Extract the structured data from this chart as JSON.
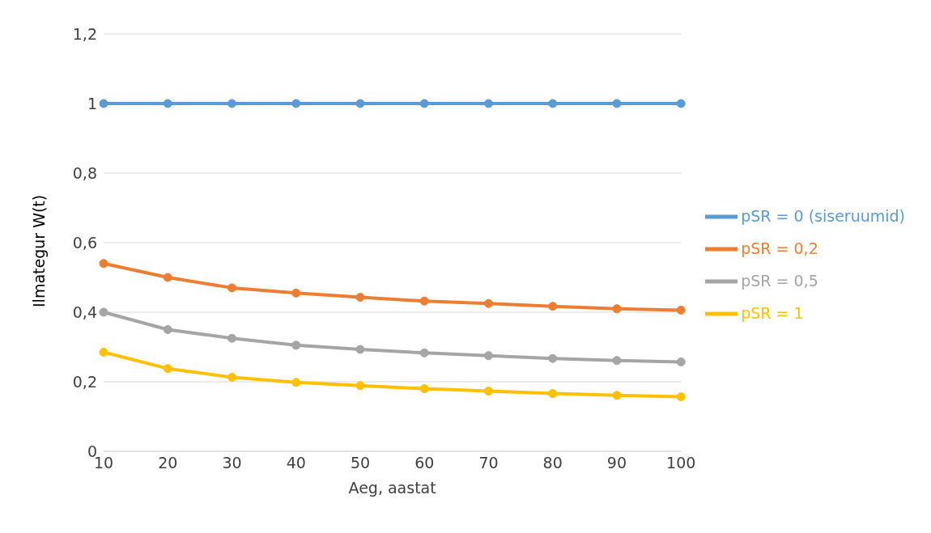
{
  "chart_data": {
    "type": "line",
    "xlabel": "Aeg, aastat",
    "ylabel": "Ilmategur W(t)",
    "categories": [
      "10",
      "20",
      "30",
      "40",
      "50",
      "60",
      "70",
      "80",
      "90",
      "100"
    ],
    "series": [
      {
        "name": "pSR = 0 (siseruumid)",
        "color": "#5b9bd5",
        "values": [
          1,
          1,
          1,
          1,
          1,
          1,
          1,
          1,
          1,
          1
        ]
      },
      {
        "name": "pSR = 0,2",
        "color": "#ed7d31",
        "values": [
          0.54,
          0.5,
          0.47,
          0.455,
          0.443,
          0.432,
          0.425,
          0.417,
          0.41,
          0.406
        ]
      },
      {
        "name": "pSR = 0,5",
        "color": "#a5a5a5",
        "values": [
          0.4,
          0.35,
          0.325,
          0.305,
          0.293,
          0.283,
          0.275,
          0.267,
          0.261,
          0.257
        ]
      },
      {
        "name": "pSR = 1",
        "color": "#ffc000",
        "values": [
          0.285,
          0.238,
          0.213,
          0.198,
          0.189,
          0.18,
          0.173,
          0.166,
          0.161,
          0.157
        ]
      }
    ],
    "ylim": [
      0,
      1.2
    ],
    "yticks": [
      0,
      {
        "value": 0.2,
        "label": "0,2"
      },
      {
        "value": 0.4,
        "label": "0,4"
      },
      {
        "value": 0.6,
        "label": "0,6"
      },
      {
        "value": 0.8,
        "label": "0,8"
      },
      1,
      {
        "value": 1.2,
        "label": "1,2"
      }
    ],
    "grid": "y",
    "legend": "right",
    "marker": "circle",
    "line_style": "solid"
  }
}
